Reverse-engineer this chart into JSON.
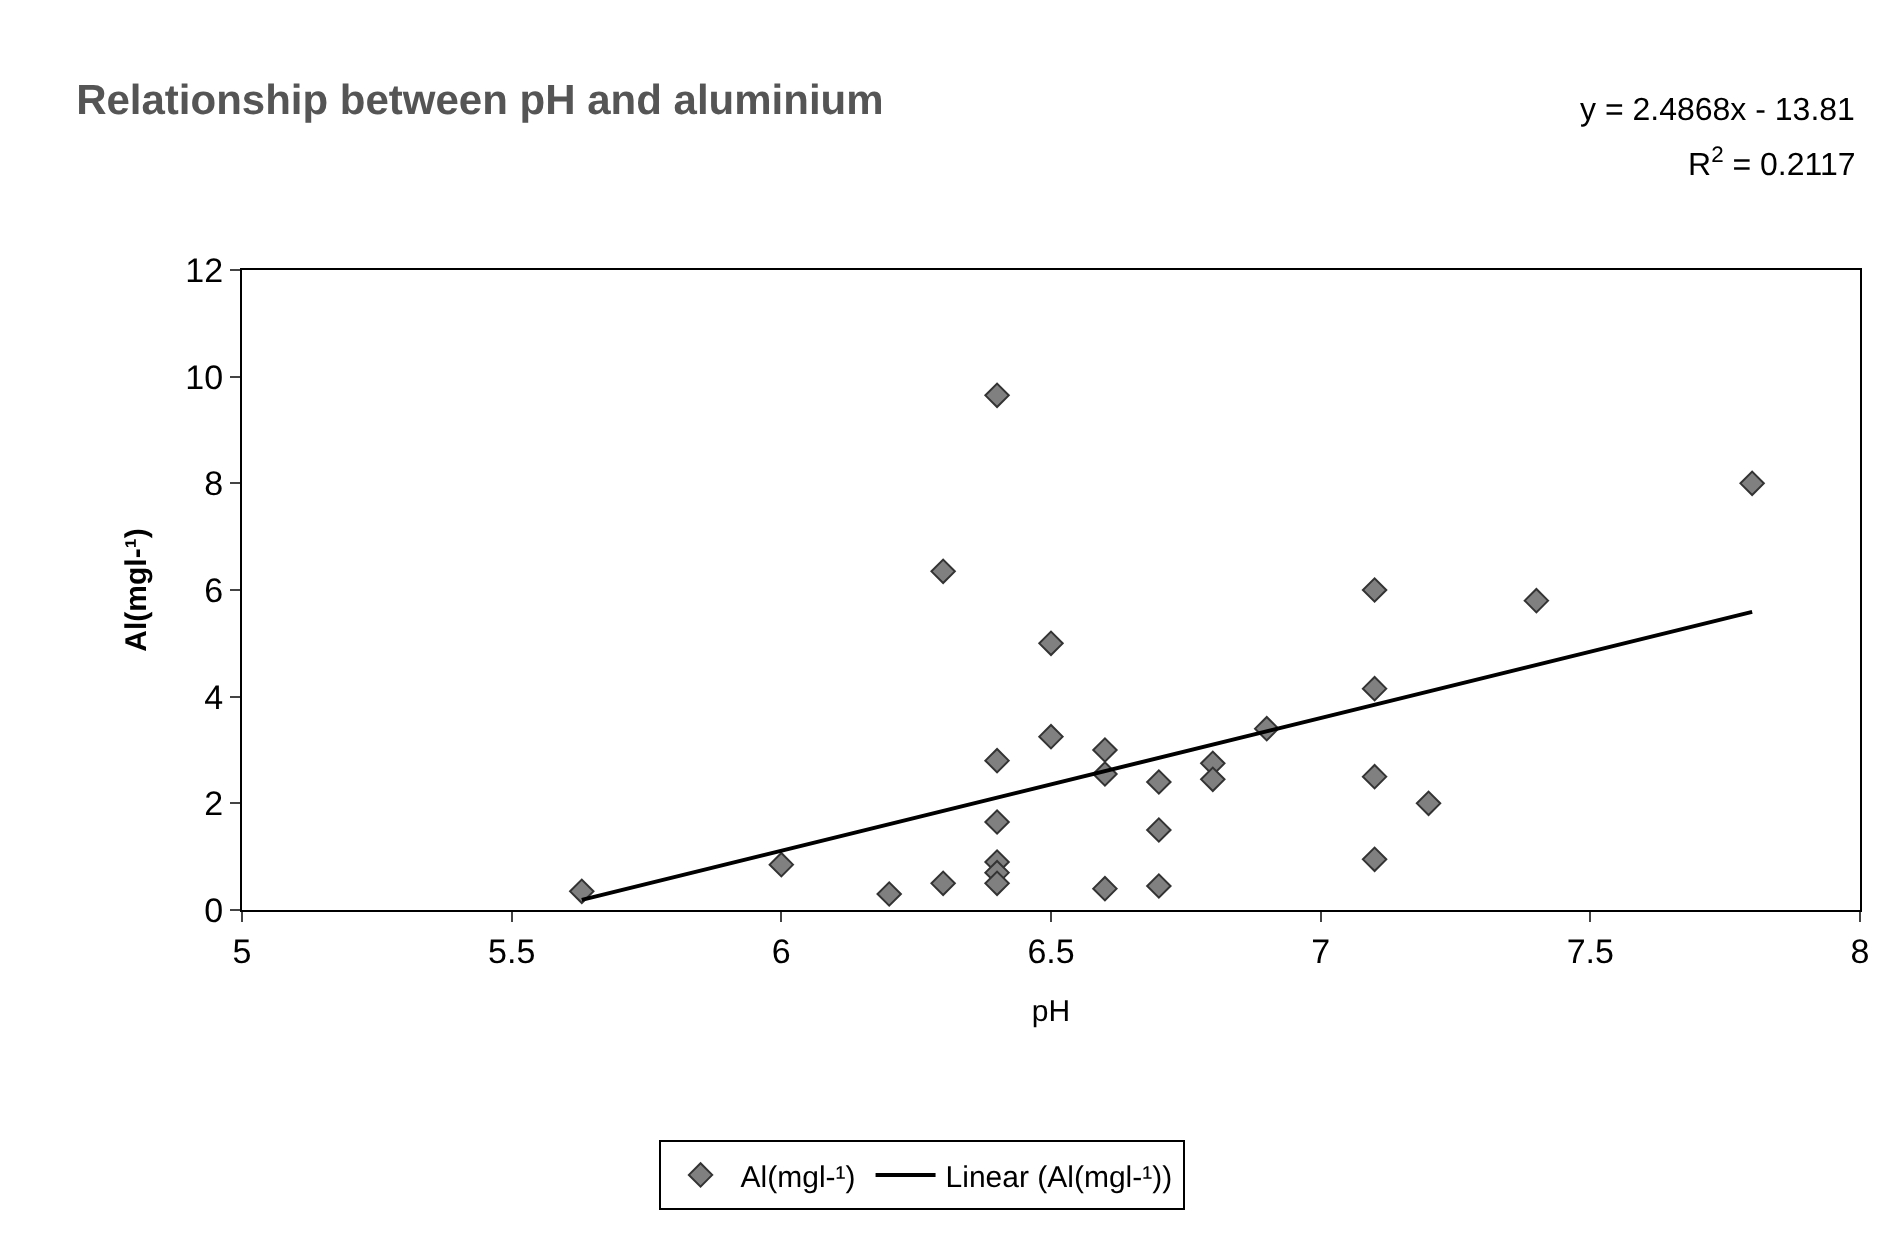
{
  "chart_data": {
    "type": "scatter",
    "title": "Relationship between pH and aluminium",
    "xlabel": "pH",
    "ylabel": "Al(mgl-¹)",
    "annotations": [
      "y = 2.4868x - 13.81",
      "R$^{2}$ = 0.2117"
    ],
    "series": [
      {
        "name": "Al(mgl-¹)",
        "color": "#808080",
        "marker": "diamond",
        "x": [
          5.63,
          6.0,
          6.2,
          6.3,
          6.3,
          6.4,
          6.4,
          6.4,
          6.4,
          6.4,
          6.4,
          6.5,
          6.5,
          6.6,
          6.6,
          6.6,
          6.7,
          6.7,
          6.7,
          6.8,
          6.8,
          6.9,
          7.1,
          7.1,
          7.1,
          7.1,
          7.2,
          7.4,
          7.8
        ],
        "values": [
          0.35,
          0.85,
          0.3,
          0.5,
          6.35,
          9.65,
          2.8,
          1.65,
          0.9,
          0.7,
          0.5,
          5.0,
          3.25,
          3.0,
          2.55,
          0.4,
          2.4,
          1.5,
          0.45,
          2.75,
          2.45,
          3.4,
          6.0,
          4.15,
          2.5,
          0.95,
          2.0,
          5.8,
          8.0
        ]
      },
      {
        "name": "Linear (Al(mgl-¹))",
        "type": "line",
        "color": "#000000",
        "marker": "none",
        "line_style": "solid",
        "x": [
          5.63,
          7.8
        ],
        "values": [
          0.19,
          5.59
        ]
      }
    ],
    "xlim": [
      5,
      8
    ],
    "xticks": [
      5,
      5.5,
      6,
      6.5,
      7,
      7.5,
      8
    ],
    "ylim": [
      0,
      12
    ],
    "yticks": [
      0,
      2,
      4,
      6,
      8,
      10,
      12
    ],
    "grid": false,
    "legend": "bottom"
  }
}
